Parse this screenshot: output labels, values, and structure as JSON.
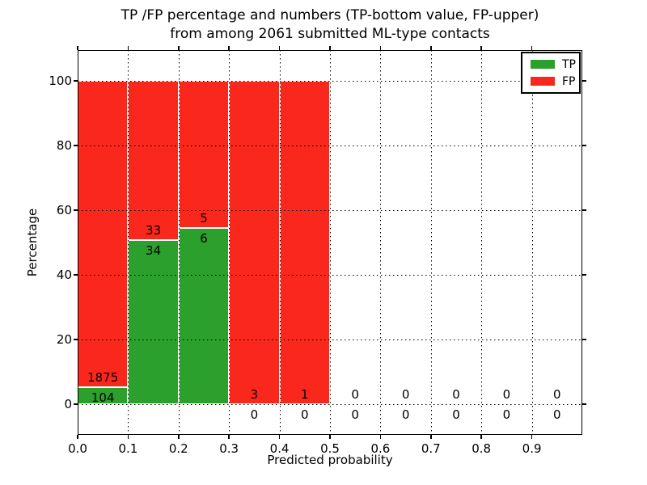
{
  "figure": {
    "title_line1": "TP /FP percentage and numbers (TP-bottom value, FP-upper)",
    "title_line2": "from among 2061 submitted ML-type contacts",
    "xlabel": "Predicted probability",
    "ylabel": "Percentage"
  },
  "legend": {
    "items": [
      {
        "label": "TP",
        "color": "#2ca02c"
      },
      {
        "label": "FP",
        "color": "#fa281c"
      }
    ]
  },
  "chart_data": {
    "type": "bar",
    "stacking": "percentage",
    "title": "TP /FP percentage and numbers (TP-bottom value, FP-upper) from among 2061 submitted ML-type contacts",
    "xlabel": "Predicted probability",
    "ylabel": "Percentage",
    "total_contacts": 2061,
    "grid": "dotted-black",
    "legend_position": "upper right",
    "xlim": [
      0.0,
      1.0
    ],
    "ylim": [
      -9.5,
      109.5
    ],
    "xticks": [
      "0.0",
      "0.1",
      "0.2",
      "0.3",
      "0.4",
      "0.5",
      "0.6",
      "0.7",
      "0.8",
      "0.9"
    ],
    "yticks": [
      0,
      20,
      40,
      60,
      80,
      100
    ],
    "bin_edges": [
      0.0,
      0.1,
      0.2,
      0.3,
      0.4,
      0.5,
      0.6,
      0.7,
      0.8,
      0.9,
      1.0
    ],
    "series": [
      {
        "name": "TP",
        "color": "#2ca02c",
        "counts": [
          104,
          34,
          6,
          0,
          0,
          0,
          0,
          0,
          0,
          0
        ]
      },
      {
        "name": "FP",
        "color": "#fa281c",
        "counts": [
          1875,
          33,
          5,
          3,
          1,
          0,
          0,
          0,
          0,
          0
        ]
      }
    ],
    "tp_percent": [
      5.25,
      50.75,
      54.55,
      0,
      0,
      0,
      0,
      0,
      0,
      0
    ]
  }
}
